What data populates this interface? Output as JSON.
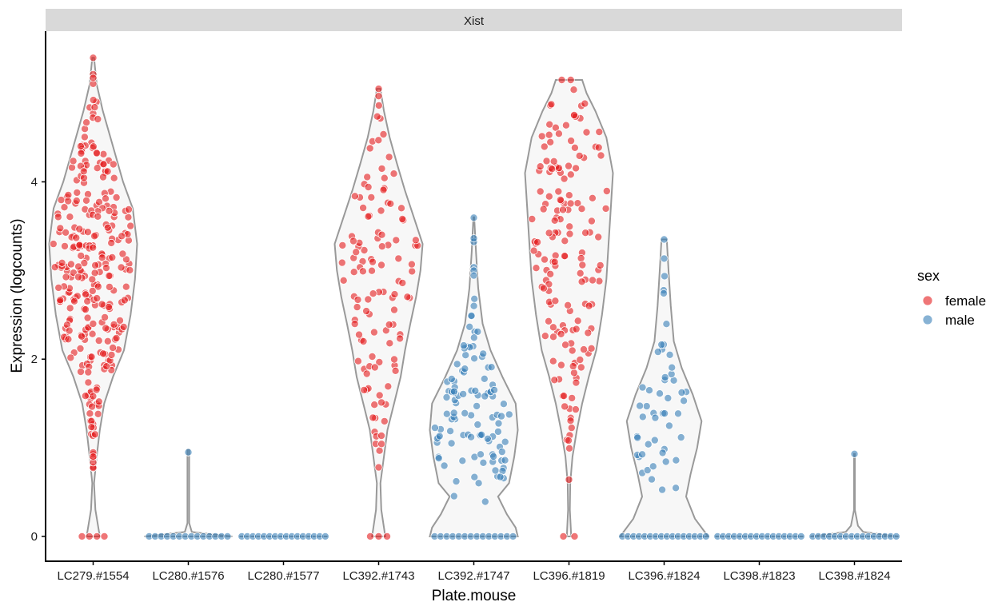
{
  "chart_data": {
    "type": "violin",
    "facet_title": "Xist",
    "xlabel": "Plate.mouse",
    "ylabel": "Expression (logcounts)",
    "categories": [
      "LC279.#1554",
      "LC280.#1576",
      "LC280.#1577",
      "LC392.#1743",
      "LC392.#1747",
      "LC396.#1819",
      "LC396.#1824",
      "LC398.#1823",
      "LC398.#1824"
    ],
    "y_ticks": [
      0,
      2,
      4
    ],
    "ylim": [
      -0.28,
      5.7
    ],
    "grid": false,
    "legend": {
      "title": "sex",
      "placement": "right",
      "entries": [
        {
          "label": "female",
          "color": "#E41A1C"
        },
        {
          "label": "male",
          "color": "#377EB8"
        }
      ]
    },
    "groups": [
      {
        "category": "LC279.#1554",
        "sex": "female",
        "max": 5.4,
        "zeros": 4,
        "density": [
          [
            0,
            0.15
          ],
          [
            0.3,
            0.05
          ],
          [
            0.6,
            0.02
          ],
          [
            0.9,
            0.08
          ],
          [
            1.2,
            0.15
          ],
          [
            1.5,
            0.25
          ],
          [
            1.8,
            0.45
          ],
          [
            2.1,
            0.7
          ],
          [
            2.5,
            0.85
          ],
          [
            2.9,
            0.95
          ],
          [
            3.3,
            1.0
          ],
          [
            3.7,
            0.9
          ],
          [
            4.0,
            0.68
          ],
          [
            4.4,
            0.45
          ],
          [
            4.8,
            0.22
          ],
          [
            5.1,
            0.08
          ],
          [
            5.4,
            0.02
          ]
        ],
        "bins": [
          [
            0.9,
            8
          ],
          [
            1.25,
            10
          ],
          [
            1.6,
            14
          ],
          [
            2.0,
            24
          ],
          [
            2.35,
            34
          ],
          [
            2.7,
            38
          ],
          [
            3.05,
            40
          ],
          [
            3.4,
            38
          ],
          [
            3.75,
            34
          ],
          [
            4.1,
            22
          ],
          [
            4.45,
            14
          ],
          [
            4.8,
            8
          ],
          [
            5.15,
            3
          ],
          [
            5.4,
            1
          ]
        ]
      },
      {
        "category": "LC280.#1576",
        "sex": "male",
        "max": 0.98,
        "zeros": 14,
        "density": [
          [
            0,
            1.0
          ],
          [
            0.05,
            0.08
          ],
          [
            0.15,
            0.02
          ],
          [
            0.5,
            0.02
          ],
          [
            0.98,
            0.02
          ]
        ],
        "bins": [
          [
            0.98,
            1
          ]
        ]
      },
      {
        "category": "LC280.#1577",
        "sex": "male",
        "max": 0.0,
        "zeros": 16,
        "density": [
          [
            0,
            1.0
          ]
        ],
        "bins": []
      },
      {
        "category": "LC392.#1743",
        "sex": "female",
        "max": 5.05,
        "zeros": 3,
        "density": [
          [
            0,
            0.15
          ],
          [
            0.3,
            0.06
          ],
          [
            0.6,
            0.04
          ],
          [
            0.9,
            0.12
          ],
          [
            1.2,
            0.2
          ],
          [
            1.5,
            0.35
          ],
          [
            1.8,
            0.5
          ],
          [
            2.1,
            0.6
          ],
          [
            2.4,
            0.72
          ],
          [
            2.7,
            0.85
          ],
          [
            3.0,
            0.95
          ],
          [
            3.3,
            1.0
          ],
          [
            3.6,
            0.8
          ],
          [
            3.9,
            0.6
          ],
          [
            4.2,
            0.42
          ],
          [
            4.5,
            0.25
          ],
          [
            4.8,
            0.12
          ],
          [
            5.05,
            0.04
          ]
        ],
        "bins": [
          [
            0.9,
            4
          ],
          [
            1.25,
            6
          ],
          [
            1.6,
            8
          ],
          [
            1.95,
            10
          ],
          [
            2.3,
            12
          ],
          [
            2.65,
            14
          ],
          [
            3.0,
            16
          ],
          [
            3.35,
            16
          ],
          [
            3.7,
            12
          ],
          [
            4.05,
            8
          ],
          [
            4.4,
            5
          ],
          [
            4.75,
            3
          ],
          [
            5.05,
            2
          ]
        ]
      },
      {
        "category": "LC392.#1747",
        "sex": "male",
        "max": 3.6,
        "zeros": 14,
        "density": [
          [
            0,
            1.0
          ],
          [
            0.1,
            0.95
          ],
          [
            0.25,
            0.75
          ],
          [
            0.45,
            0.55
          ],
          [
            0.6,
            0.8
          ],
          [
            0.9,
            0.92
          ],
          [
            1.2,
            1.0
          ],
          [
            1.5,
            0.95
          ],
          [
            1.8,
            0.65
          ],
          [
            2.1,
            0.38
          ],
          [
            2.4,
            0.2
          ],
          [
            2.8,
            0.1
          ],
          [
            3.2,
            0.05
          ],
          [
            3.6,
            0.01
          ]
        ],
        "bins": [
          [
            0.5,
            2
          ],
          [
            0.75,
            14
          ],
          [
            1.0,
            18
          ],
          [
            1.25,
            20
          ],
          [
            1.5,
            18
          ],
          [
            1.75,
            14
          ],
          [
            2.0,
            10
          ],
          [
            2.25,
            6
          ],
          [
            2.6,
            4
          ],
          [
            2.95,
            3
          ],
          [
            3.3,
            2
          ],
          [
            3.6,
            1
          ]
        ]
      },
      {
        "category": "LC396.#1819",
        "sex": "female",
        "max": 5.15,
        "zeros": 2,
        "density": [
          [
            0,
            0.05
          ],
          [
            0.3,
            0.02
          ],
          [
            0.6,
            0.03
          ],
          [
            0.9,
            0.08
          ],
          [
            1.2,
            0.18
          ],
          [
            1.5,
            0.3
          ],
          [
            1.8,
            0.45
          ],
          [
            2.1,
            0.62
          ],
          [
            2.5,
            0.75
          ],
          [
            2.9,
            0.85
          ],
          [
            3.3,
            0.9
          ],
          [
            3.7,
            0.95
          ],
          [
            4.1,
            1.0
          ],
          [
            4.5,
            0.85
          ],
          [
            4.8,
            0.6
          ],
          [
            5.0,
            0.4
          ],
          [
            5.15,
            0.3
          ]
        ],
        "bins": [
          [
            0.65,
            1
          ],
          [
            1.0,
            4
          ],
          [
            1.35,
            6
          ],
          [
            1.7,
            8
          ],
          [
            2.05,
            12
          ],
          [
            2.4,
            14
          ],
          [
            2.75,
            16
          ],
          [
            3.1,
            18
          ],
          [
            3.45,
            18
          ],
          [
            3.8,
            18
          ],
          [
            4.15,
            18
          ],
          [
            4.5,
            14
          ],
          [
            4.85,
            8
          ],
          [
            5.15,
            3
          ]
        ]
      },
      {
        "category": "LC396.#1824",
        "sex": "male",
        "max": 3.35,
        "zeros": 16,
        "density": [
          [
            0,
            1.0
          ],
          [
            0.2,
            0.7
          ],
          [
            0.45,
            0.5
          ],
          [
            0.7,
            0.6
          ],
          [
            1.0,
            0.75
          ],
          [
            1.3,
            0.85
          ],
          [
            1.6,
            0.65
          ],
          [
            1.9,
            0.4
          ],
          [
            2.2,
            0.22
          ],
          [
            2.6,
            0.15
          ],
          [
            3.0,
            0.1
          ],
          [
            3.35,
            0.06
          ]
        ],
        "bins": [
          [
            0.55,
            2
          ],
          [
            0.75,
            6
          ],
          [
            1.0,
            8
          ],
          [
            1.25,
            8
          ],
          [
            1.5,
            8
          ],
          [
            1.75,
            6
          ],
          [
            2.0,
            4
          ],
          [
            2.3,
            3
          ],
          [
            2.7,
            2
          ],
          [
            3.05,
            2
          ],
          [
            3.35,
            1
          ]
        ]
      },
      {
        "category": "LC398.#1823",
        "sex": "male",
        "max": 0.0,
        "zeros": 16,
        "density": [
          [
            0,
            1.0
          ]
        ],
        "bins": []
      },
      {
        "category": "LC398.#1824",
        "sex": "male",
        "max": 0.93,
        "zeros": 16,
        "density": [
          [
            0,
            1.0
          ],
          [
            0.05,
            0.2
          ],
          [
            0.12,
            0.08
          ],
          [
            0.3,
            0.01
          ],
          [
            0.93,
            0.01
          ]
        ],
        "bins": [
          [
            0.93,
            1
          ]
        ]
      }
    ]
  }
}
